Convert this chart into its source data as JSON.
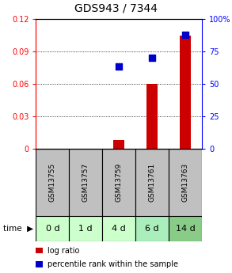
{
  "title": "GDS943 / 7344",
  "samples": [
    "GSM13755",
    "GSM13757",
    "GSM13759",
    "GSM13761",
    "GSM13763"
  ],
  "time_labels": [
    "0 d",
    "1 d",
    "4 d",
    "6 d",
    "14 d"
  ],
  "log_ratio": [
    0.0,
    0.0,
    0.008,
    0.06,
    0.105
  ],
  "percentile_rank": [
    null,
    null,
    63.5,
    70.0,
    88.0
  ],
  "ylim_left": [
    0,
    0.12
  ],
  "ylim_right": [
    0,
    100
  ],
  "yticks_left": [
    0,
    0.03,
    0.06,
    0.09,
    0.12
  ],
  "yticks_right": [
    0,
    25,
    50,
    75,
    100
  ],
  "ytick_labels_left": [
    "0",
    "0.03",
    "0.06",
    "0.09",
    "0.12"
  ],
  "ytick_labels_right": [
    "0",
    "25",
    "50",
    "75",
    "100%"
  ],
  "bar_color": "#cc0000",
  "dot_color": "#0000cc",
  "sample_bg": "#c0c0c0",
  "time_bg_colors": [
    "#ccffcc",
    "#ccffcc",
    "#ccffcc",
    "#aaeebb",
    "#88cc88"
  ],
  "title_fontsize": 10,
  "bar_width": 0.35,
  "dot_size": 30
}
